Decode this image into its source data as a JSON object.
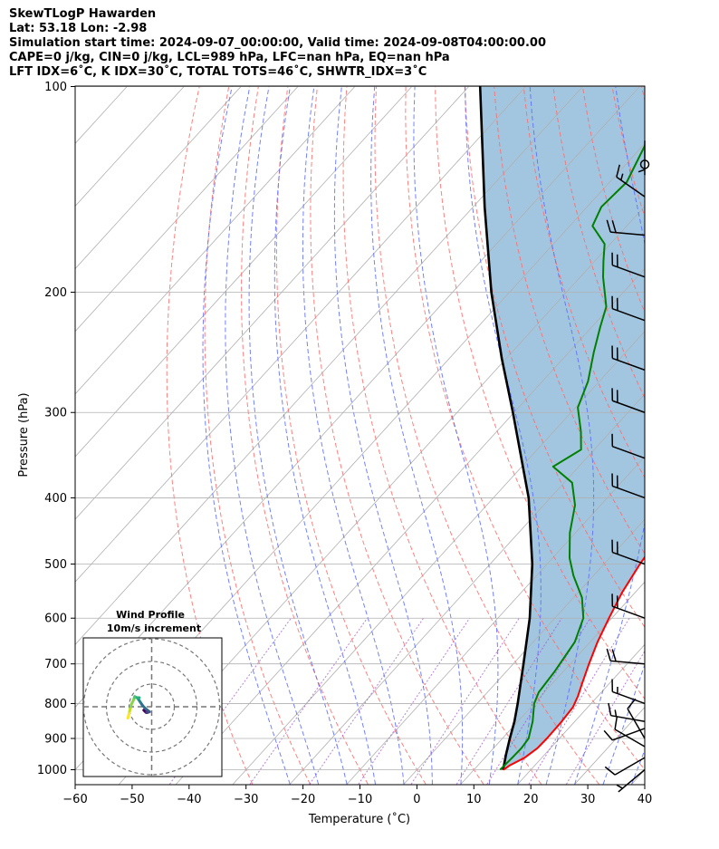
{
  "header": {
    "line1": "SkewTLogP Hawarden",
    "line2": "Lat: 53.18   Lon: -2.98",
    "line3": "Simulation start time: 2024-09-07_00:00:00, Valid time: 2024-09-08T04:00:00.00",
    "line4": "CAPE=0 j/kg, CIN=0 j/kg, LCL=989 hPa, LFC=nan hPa, EQ=nan hPa",
    "line5": "LFT IDX=6˚C, K IDX=30˚C, TOTAL TOTS=46˚C, SHWTR_IDX=3˚C"
  },
  "colors": {
    "temperature": "#ff0000",
    "dewpoint": "#008000",
    "parcel": "#000000",
    "shade": "#a3c6e0",
    "dry_adiabat": "#ff6b6b",
    "moist_adiabat": "#5b6bff",
    "mixing_ratio": "#9b4fc6",
    "isotherm": "#b0b0b0"
  },
  "chart_data": {
    "type": "line",
    "title": "SkewTLogP Hawarden",
    "xlabel": "Temperature (˚C)",
    "ylabel": "Pressure (hPa)",
    "xlim": [
      -60,
      40
    ],
    "ylim": [
      1050,
      100
    ],
    "y_scale": "log",
    "grid": true,
    "x_ticks": [
      "−60",
      "−50",
      "−40",
      "−30",
      "−20",
      "−10",
      "0",
      "10",
      "20",
      "30",
      "40"
    ],
    "y_ticks": [
      "100",
      "200",
      "300",
      "400",
      "500",
      "600",
      "700",
      "800",
      "900",
      "1000"
    ],
    "series": [
      {
        "kind": "temperature",
        "points": [
          [
            1000,
            15.2
          ],
          [
            985,
            15.6
          ],
          [
            960,
            17.0
          ],
          [
            930,
            17.7
          ],
          [
            900,
            17.8
          ],
          [
            850,
            17.7
          ],
          [
            810,
            17.4
          ],
          [
            780,
            16.5
          ],
          [
            750,
            15.3
          ],
          [
            700,
            13.3
          ],
          [
            650,
            11.3
          ],
          [
            600,
            9.5
          ],
          [
            550,
            7.7
          ],
          [
            500,
            6.3
          ],
          [
            450,
            5.2
          ],
          [
            400,
            2.5
          ],
          [
            370,
            -0.8
          ],
          [
            340,
            -3.3
          ],
          [
            310,
            -6.8
          ],
          [
            290,
            -9.2
          ],
          [
            270,
            -11.5
          ],
          [
            255,
            -14.0
          ],
          [
            240,
            -17.5
          ],
          [
            225,
            -20.4
          ],
          [
            210,
            -24.5
          ],
          [
            195,
            -28.0
          ],
          [
            180,
            -32.5
          ],
          [
            168,
            -37.0
          ],
          [
            155,
            -41.5
          ],
          [
            145,
            -45.3
          ],
          [
            135,
            -49.5
          ],
          [
            125,
            -53.8
          ],
          [
            115,
            -58.5
          ],
          [
            105,
            -63.5
          ],
          [
            100,
            -66.0
          ]
        ]
      },
      {
        "kind": "dewpoint",
        "points": [
          [
            1000,
            14.6
          ],
          [
            960,
            14.8
          ],
          [
            930,
            14.9
          ],
          [
            900,
            14.6
          ],
          [
            850,
            12.6
          ],
          [
            800,
            10.0
          ],
          [
            770,
            9.0
          ],
          [
            720,
            8.5
          ],
          [
            650,
            7.3
          ],
          [
            600,
            5.0
          ],
          [
            560,
            1.5
          ],
          [
            520,
            -3.5
          ],
          [
            490,
            -7.0
          ],
          [
            450,
            -11.0
          ],
          [
            410,
            -14.5
          ],
          [
            380,
            -18.6
          ],
          [
            360,
            -24.5
          ],
          [
            340,
            -22.3
          ],
          [
            320,
            -25.2
          ],
          [
            295,
            -29.6
          ],
          [
            270,
            -32.0
          ],
          [
            245,
            -35.6
          ],
          [
            225,
            -38.5
          ],
          [
            210,
            -40.7
          ],
          [
            190,
            -46.0
          ],
          [
            180,
            -48.5
          ],
          [
            170,
            -51.0
          ],
          [
            160,
            -56.0
          ],
          [
            150,
            -57.5
          ],
          [
            138,
            -57.0
          ],
          [
            120,
            -60.0
          ],
          [
            100,
            -65.0
          ]
        ]
      },
      {
        "kind": "parcel",
        "points": [
          [
            1000,
            15.0
          ],
          [
            989,
            14.7
          ],
          [
            950,
            13.2
          ],
          [
            900,
            11.3
          ],
          [
            850,
            9.4
          ],
          [
            800,
            7.1
          ],
          [
            700,
            1.8
          ],
          [
            600,
            -4.4
          ],
          [
            500,
            -12.6
          ],
          [
            400,
            -23.8
          ],
          [
            300,
            -40.2
          ],
          [
            250,
            -50.8
          ],
          [
            200,
            -63.2
          ],
          [
            150,
            -78.0
          ],
          [
            100,
            -98.0
          ]
        ]
      }
    ],
    "hodograph": {
      "title": "Wind Profile",
      "subtitle": "10m/s increment",
      "u": [
        -3.5,
        -3.0,
        -2.5,
        -2.0,
        -1.5,
        -1.0,
        -2.5,
        -4.0,
        -5.0,
        -6.0,
        -5.5,
        -6.5,
        -7.5,
        -8.0,
        -9.0,
        -9.5,
        -10.0,
        -10.5
      ],
      "v": [
        -1.5,
        -2.0,
        -2.5,
        -2.6,
        -2.4,
        -2.2,
        -1.0,
        0.5,
        2.0,
        3.5,
        4.0,
        4.0,
        4.5,
        3.0,
        1.0,
        -1.0,
        -3.0,
        -5.0
      ]
    },
    "wind_barbs": [
      {
        "p": 1000,
        "speed_kt": 5,
        "dir": 230
      },
      {
        "p": 960,
        "speed_kt": 10,
        "dir": 240
      },
      {
        "p": 925,
        "speed_kt": 10,
        "dir": 300
      },
      {
        "p": 900,
        "speed_kt": 10,
        "dir": 330
      },
      {
        "p": 870,
        "speed_kt": 10,
        "dir": 250
      },
      {
        "p": 850,
        "speed_kt": 15,
        "dir": 280
      },
      {
        "p": 800,
        "speed_kt": 15,
        "dir": 290
      },
      {
        "p": 700,
        "speed_kt": 20,
        "dir": 275
      },
      {
        "p": 600,
        "speed_kt": 20,
        "dir": 290
      },
      {
        "p": 500,
        "speed_kt": 20,
        "dir": 290
      },
      {
        "p": 400,
        "speed_kt": 20,
        "dir": 290
      },
      {
        "p": 350,
        "speed_kt": 10,
        "dir": 290
      },
      {
        "p": 300,
        "speed_kt": 20,
        "dir": 290
      },
      {
        "p": 260,
        "speed_kt": 20,
        "dir": 290
      },
      {
        "p": 220,
        "speed_kt": 20,
        "dir": 290
      },
      {
        "p": 190,
        "speed_kt": 20,
        "dir": 290
      },
      {
        "p": 165,
        "speed_kt": 20,
        "dir": 275
      },
      {
        "p": 145,
        "speed_kt": 15,
        "dir": 305
      },
      {
        "p": 130,
        "speed_kt": 0,
        "dir": 0
      },
      {
        "p": 120,
        "speed_kt": 5,
        "dir": 180
      }
    ]
  }
}
